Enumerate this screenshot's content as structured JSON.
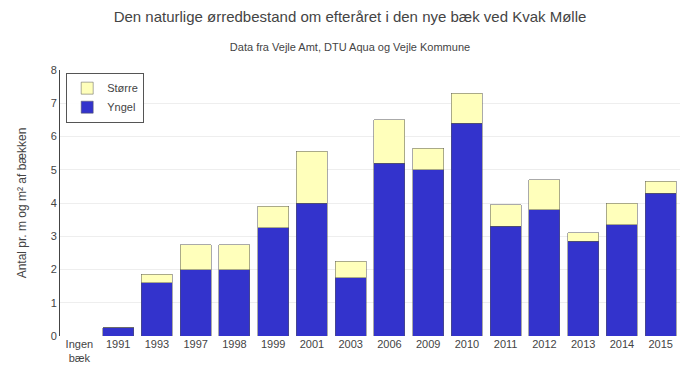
{
  "chart_data": {
    "type": "bar",
    "stacked": true,
    "title": "Den naturlige ørredbestand om efteråret i den nye bæk ved Kvak Mølle",
    "subtitle": "Data fra Vejle Amt, DTU Aqua og Vejle Kommune",
    "ylabel": "Antal pr. m og m² af bækken",
    "categories": [
      "Ingen\nbæk",
      "1991",
      "1993",
      "1997",
      "1998",
      "1999",
      "2001",
      "2003",
      "2006",
      "2009",
      "2010",
      "2011",
      "2012",
      "2013",
      "2014",
      "2015"
    ],
    "series": [
      {
        "name": "Yngel",
        "color": "#3333CC",
        "values": [
          0,
          0.25,
          1.6,
          2.0,
          2.0,
          3.25,
          4.0,
          1.75,
          5.2,
          5.0,
          6.4,
          3.3,
          3.8,
          2.85,
          3.35,
          4.3
        ]
      },
      {
        "name": "Større",
        "color": "#FFFFBB",
        "values": [
          0,
          0,
          0.25,
          0.75,
          0.75,
          0.65,
          1.55,
          0.5,
          1.3,
          0.65,
          0.9,
          0.65,
          0.9,
          0.25,
          0.65,
          0.35
        ]
      }
    ],
    "ylim": [
      0,
      8
    ],
    "yticks": [
      0,
      1,
      2,
      3,
      4,
      5,
      6,
      7,
      8
    ],
    "grid": true,
    "legend": "upper left"
  }
}
